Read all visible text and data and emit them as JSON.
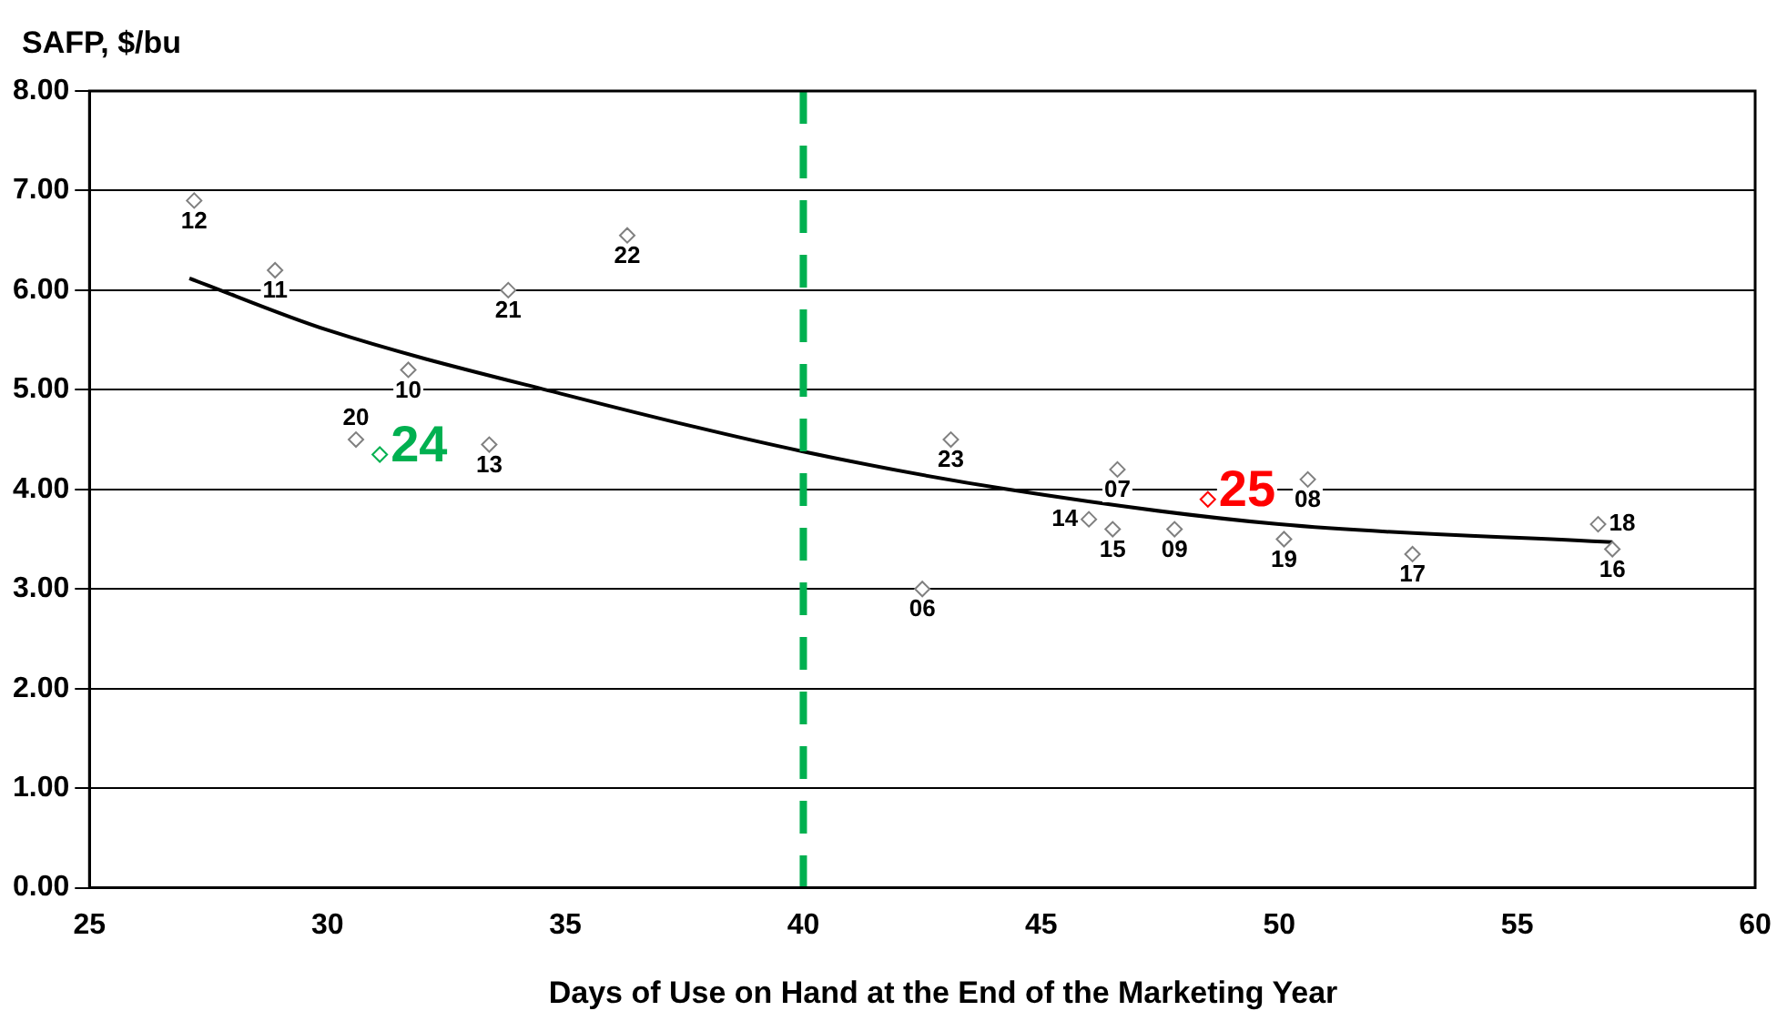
{
  "chart_data": {
    "type": "scatter",
    "ylabel": "SAFP, $/bu",
    "xlabel": "Days of Use on Hand at the End of the Marketing Year",
    "xlim": [
      25,
      60
    ],
    "xticks": [
      25,
      30,
      35,
      40,
      45,
      50,
      55,
      60
    ],
    "ylim": [
      0,
      8
    ],
    "yticks": [
      {
        "value": 0,
        "label": "0.00"
      },
      {
        "value": 1,
        "label": "1.00"
      },
      {
        "value": 2,
        "label": "2.00"
      },
      {
        "value": 3,
        "label": "3.00"
      },
      {
        "value": 4,
        "label": "4.00"
      },
      {
        "value": 5,
        "label": "5.00"
      },
      {
        "value": 6,
        "label": "6.00"
      },
      {
        "value": 7,
        "label": "7.00"
      },
      {
        "value": 8,
        "label": "8.00"
      }
    ],
    "grid": "y",
    "legend": false,
    "marker": "diamond",
    "series": [
      {
        "color": "#808080",
        "x": [
          27.2,
          28.9,
          33.8,
          36.3,
          31.7,
          30.6,
          33.4,
          43.1,
          46.6,
          50.6,
          46.0,
          46.5,
          47.8,
          50.1,
          42.5,
          52.8,
          56.7,
          57.0
        ],
        "values": [
          6.9,
          6.2,
          6.0,
          6.55,
          5.2,
          4.5,
          4.45,
          4.5,
          4.2,
          4.1,
          3.7,
          3.6,
          3.6,
          3.5,
          3.0,
          3.35,
          3.65,
          3.4
        ]
      },
      {
        "color": "#00b050",
        "x": [
          31.1
        ],
        "values": [
          4.35
        ]
      },
      {
        "color": "#ff0000",
        "x": [
          48.5
        ],
        "values": [
          3.9
        ]
      },
      {
        "type": "line",
        "color": "#000000",
        "marker": "none",
        "x": [
          27.1,
          30,
          35,
          40,
          44.3,
          50,
          57
        ],
        "values": [
          6.12,
          5.6,
          4.95,
          4.38,
          4.0,
          3.65,
          3.47
        ]
      }
    ],
    "annotations": [
      {
        "text": "12",
        "x": 27.2,
        "y": 6.9
      },
      {
        "text": "11",
        "x": 28.9,
        "y": 6.2
      },
      {
        "text": "21",
        "x": 33.8,
        "y": 6.0
      },
      {
        "text": "22",
        "x": 36.3,
        "y": 6.55
      },
      {
        "text": "10",
        "x": 31.7,
        "y": 5.2
      },
      {
        "text": "20",
        "x": 30.6,
        "y": 4.5
      },
      {
        "text": "13",
        "x": 33.4,
        "y": 4.45
      },
      {
        "text": "23",
        "x": 43.1,
        "y": 4.5
      },
      {
        "text": "07",
        "x": 46.6,
        "y": 4.2
      },
      {
        "text": "08",
        "x": 50.6,
        "y": 4.1
      },
      {
        "text": "14",
        "x": 46.0,
        "y": 3.7
      },
      {
        "text": "15",
        "x": 46.5,
        "y": 3.6
      },
      {
        "text": "09",
        "x": 47.8,
        "y": 3.6
      },
      {
        "text": "19",
        "x": 50.1,
        "y": 3.5
      },
      {
        "text": "06",
        "x": 42.5,
        "y": 3.0
      },
      {
        "text": "17",
        "x": 52.8,
        "y": 3.35
      },
      {
        "text": "18",
        "x": 56.7,
        "y": 3.65
      },
      {
        "text": "16",
        "x": 57.0,
        "y": 3.4
      },
      {
        "text": "24",
        "x": 31.1,
        "y": 4.35
      },
      {
        "text": "25",
        "x": 48.5,
        "y": 3.9
      }
    ],
    "ref_lines": [
      {
        "axis": "x",
        "value": 40,
        "color": "#00b050",
        "line_style": "dashed"
      }
    ]
  }
}
